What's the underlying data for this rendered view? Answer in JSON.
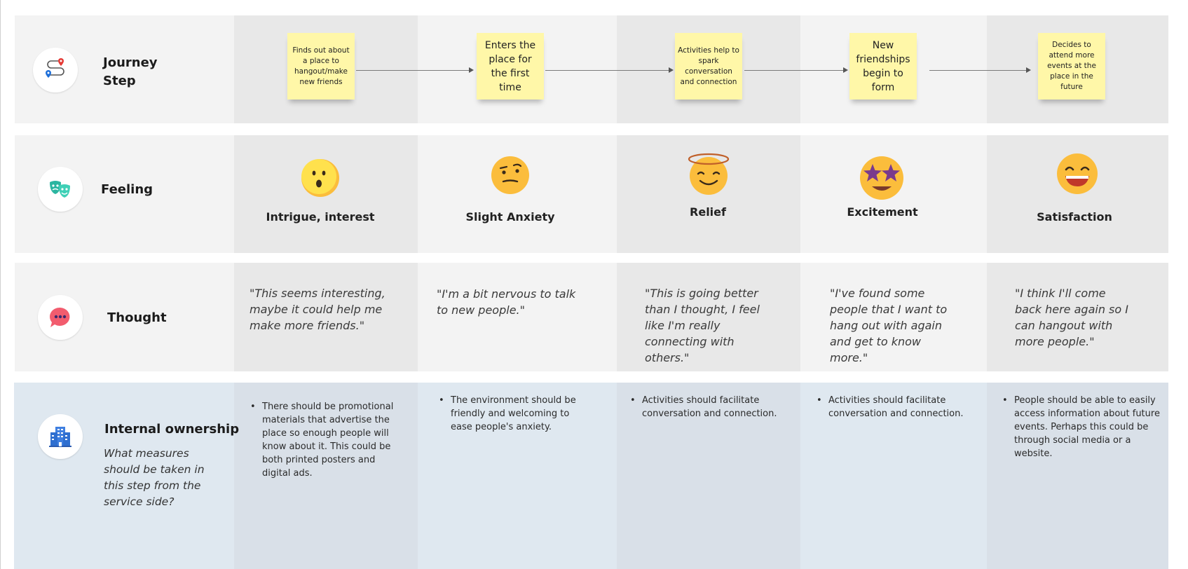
{
  "rows": {
    "journey": {
      "title_line1": "Journey",
      "title_line2": "Step",
      "icon": "route-map-pins-icon"
    },
    "feeling": {
      "title": "Feeling",
      "icon": "theater-masks-icon"
    },
    "thought": {
      "title": "Thought",
      "icon": "speech-bubble-dots-icon"
    },
    "internal": {
      "title": "Internal ownership",
      "subtitle": "What measures should be taken in this step from the service side?",
      "icon": "office-building-icon"
    }
  },
  "steps": [
    {
      "sticky": "Finds out about a place to hangout/make new friends",
      "feeling": "Intrigue, interest",
      "emoji": "surprised-face-icon",
      "thought": "\"This seems interesting, maybe it could help me make more friends.\"",
      "ownership": "There should be promotional materials that advertise the place so enough people will know about it. This could be both printed posters and digital ads."
    },
    {
      "sticky": "Enters the place for the first time",
      "feeling": "Slight Anxiety",
      "emoji": "raised-eyebrow-face-icon",
      "thought": "\"I'm a bit nervous to talk to new people.\"",
      "ownership": "The environment should be friendly and welcoming to ease people's anxiety."
    },
    {
      "sticky": "Activities help to spark conversation and connection",
      "feeling": "Relief",
      "emoji": "halo-smiling-face-icon",
      "thought": "\"This is going better than I thought, I feel like I'm really connecting with others.\"",
      "ownership": "Activities should facilitate conversation and connection."
    },
    {
      "sticky": "New friendships begin to form",
      "feeling": "Excitement",
      "emoji": "star-eyes-face-icon",
      "thought": "\"I've found some people that I want to hang out with again and get to know more.\"",
      "ownership": "Activities should facilitate conversation and connection."
    },
    {
      "sticky": "Decides to attend more events at the place in the future",
      "feeling": "Satisfaction",
      "emoji": "grinning-face-icon",
      "thought": "\"I think I'll come back here again so I can hangout with more people.\"",
      "ownership": "People should be able to easily access information about future events. Perhaps this could be through social media or a website."
    }
  ],
  "bullet_glyph": "•",
  "colors": {
    "sticky": "#fff7a8",
    "row_bg": "#f3f3f3",
    "internal_bg": "#dfe8f0",
    "emoji_yellow": "#fbbd3c"
  }
}
